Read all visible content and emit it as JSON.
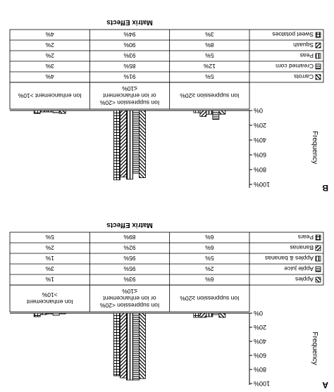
{
  "chart_data": [
    {
      "panel": "A",
      "type": "bar",
      "title": "Matrix Effects",
      "ylabel": "Frequency",
      "ylim": [
        0,
        100
      ],
      "yticks": [
        "0%",
        "20%",
        "40%",
        "60%",
        "80%",
        "100%"
      ],
      "grid": false,
      "legend_placement": "table-left",
      "categories": [
        "Ion suppression ≥20%",
        "Ion suppression <20% or ion enhancement ≤10%",
        "Ion enhancement >10%"
      ],
      "series": [
        {
          "name": "Apples",
          "values": [
            6,
            93,
            1
          ],
          "pattern": "diag-back"
        },
        {
          "name": "Apple juice",
          "values": [
            2,
            95,
            3
          ],
          "pattern": "horiz-dense"
        },
        {
          "name": "Apples & bananas",
          "values": [
            5,
            95,
            1
          ],
          "pattern": "vert"
        },
        {
          "name": "Bananas",
          "values": [
            6,
            92,
            2
          ],
          "pattern": "diag-fwd"
        },
        {
          "name": "Pears",
          "values": [
            6,
            89,
            5
          ],
          "pattern": "grid"
        }
      ],
      "table_rows": [
        {
          "name": "Apples",
          "values": [
            "6%",
            "93%",
            "1%"
          ]
        },
        {
          "name": "Apple juice",
          "values": [
            "2%",
            "95%",
            "3%"
          ]
        },
        {
          "name": "Apples & bananas",
          "values": [
            "5%",
            "95%",
            "1%"
          ]
        },
        {
          "name": "Bananas",
          "values": [
            "6%",
            "92%",
            "2%"
          ]
        },
        {
          "name": "Pears",
          "values": [
            "6%",
            "89%",
            "5%"
          ]
        }
      ]
    },
    {
      "panel": "B",
      "type": "bar",
      "title": "Matrix Effects",
      "ylabel": "Frequency",
      "ylim": [
        0,
        100
      ],
      "yticks": [
        "0%",
        "20%",
        "40%",
        "60%",
        "80%",
        "100%"
      ],
      "grid": false,
      "legend_placement": "table-left",
      "categories": [
        "Ion suppression ≥20%",
        "Ion suppression <20% or ion enhancement ≤10%",
        "Ion enhancement >10%"
      ],
      "series": [
        {
          "name": "Carrots",
          "values": [
            5,
            91,
            4
          ],
          "pattern": "diag-back"
        },
        {
          "name": "Creamed corn",
          "values": [
            12,
            85,
            3
          ],
          "pattern": "horiz-dense"
        },
        {
          "name": "Peas",
          "values": [
            5,
            93,
            2
          ],
          "pattern": "vert"
        },
        {
          "name": "Squash",
          "values": [
            8,
            90,
            2
          ],
          "pattern": "diag-fwd"
        },
        {
          "name": "Sweet potatoes",
          "values": [
            3,
            94,
            4
          ],
          "pattern": "grid"
        }
      ],
      "table_rows": [
        {
          "name": "Carrots",
          "values": [
            "5%",
            "91%",
            "4%"
          ]
        },
        {
          "name": "Creamed corn",
          "values": [
            "12%",
            "85%",
            "3%"
          ]
        },
        {
          "name": "Peas",
          "values": [
            "5%",
            "93%",
            "2%"
          ]
        },
        {
          "name": "Squash",
          "values": [
            "8%",
            "90%",
            "2%"
          ]
        },
        {
          "name": "Sweet potatoes",
          "values": [
            "3%",
            "94%",
            "4%"
          ]
        }
      ]
    }
  ]
}
